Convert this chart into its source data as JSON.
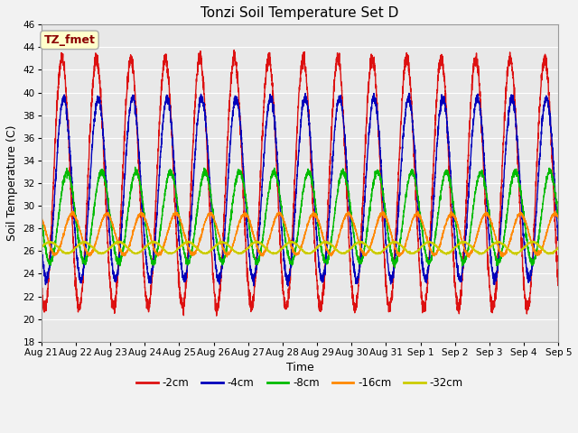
{
  "title": "Tonzi Soil Temperature Set D",
  "xlabel": "Time",
  "ylabel": "Soil Temperature (C)",
  "ylim": [
    18,
    46
  ],
  "yticks": [
    18,
    20,
    22,
    24,
    26,
    28,
    30,
    32,
    34,
    36,
    38,
    40,
    42,
    44,
    46
  ],
  "label_text": "TZ_fmet",
  "label_color": "#8b0000",
  "label_bg": "#ffffcc",
  "label_border": "#aaaaaa",
  "series": [
    {
      "name": "-2cm",
      "color": "#dd1111",
      "amplitude": 11.0,
      "mean": 32.0,
      "phase_shift": 0.35,
      "noise": 0.3
    },
    {
      "name": "-4cm",
      "color": "#0000bb",
      "amplitude": 8.0,
      "mean": 31.5,
      "phase_shift": 0.4,
      "noise": 0.2
    },
    {
      "name": "-8cm",
      "color": "#00bb00",
      "amplitude": 4.0,
      "mean": 29.0,
      "phase_shift": 0.5,
      "noise": 0.15
    },
    {
      "name": "-16cm",
      "color": "#ff8800",
      "amplitude": 1.8,
      "mean": 27.5,
      "phase_shift": 0.65,
      "noise": 0.08
    },
    {
      "name": "-32cm",
      "color": "#cccc00",
      "amplitude": 0.5,
      "mean": 26.3,
      "phase_shift": 1.0,
      "noise": 0.04
    }
  ],
  "n_points": 4000,
  "period": 1.0,
  "bg_color": "#e8e8e8",
  "fig_bg_color": "#f2f2f2",
  "grid_color": "#ffffff",
  "linewidth": 1.0,
  "title_fontsize": 11,
  "axis_fontsize": 9,
  "tick_fontsize": 7.5,
  "legend_fontsize": 8.5,
  "tick_labels": [
    "Aug 21",
    "Aug 22",
    "Aug 23",
    "Aug 24",
    "Aug 25",
    "Aug 26",
    "Aug 27",
    "Aug 28",
    "Aug 29",
    "Aug 30",
    "Aug 31",
    "Sep 1",
    "Sep 2",
    "Sep 3",
    "Sep 4",
    "Sep 5"
  ]
}
